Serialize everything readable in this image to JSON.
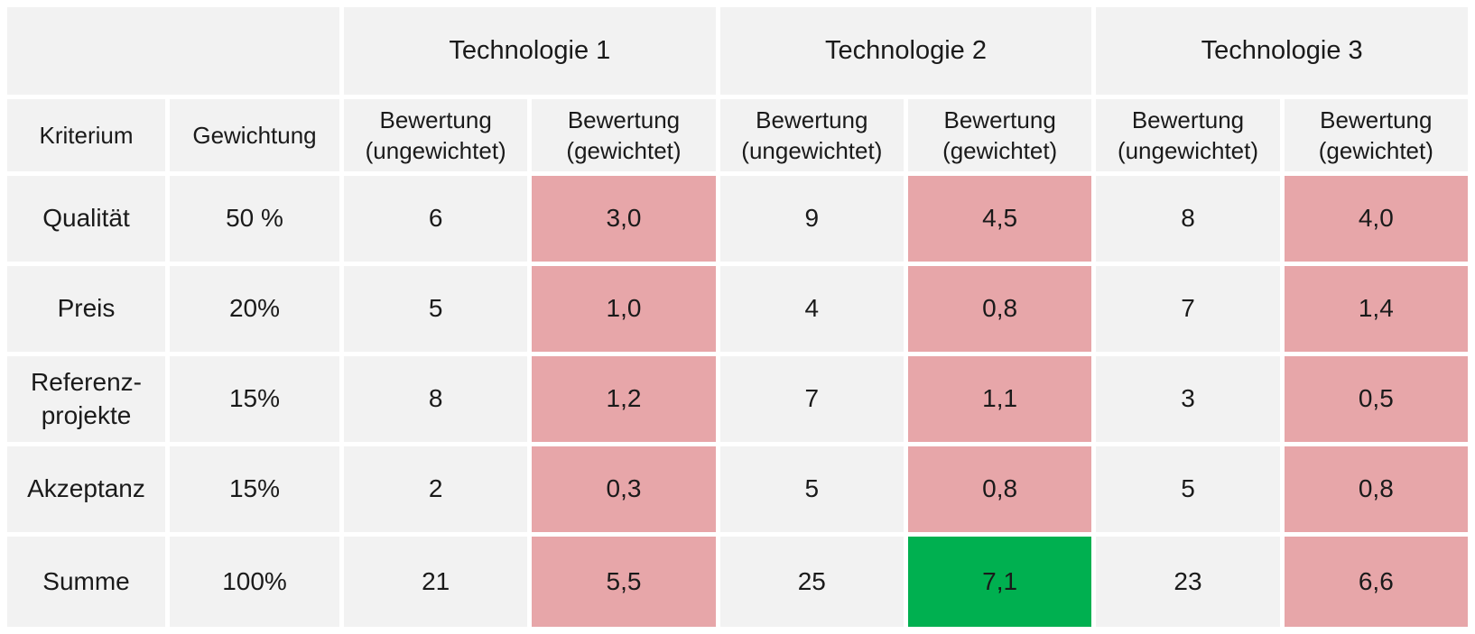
{
  "colors": {
    "page_bg": "#ffffff",
    "cell_bg": "#f2f2f2",
    "text": "#1a1a1a",
    "weighted_pink": "#e7a6a9",
    "winner_green": "#00b050"
  },
  "chart_data": {
    "type": "table",
    "column_groups": [
      "",
      "Technologie 1",
      "Technologie 2",
      "Technologie 3"
    ],
    "columns": [
      "Kriterium",
      "Gewichtung",
      "Bewertung (ungewichtet)",
      "Bewertung (gewichtet)",
      "Bewertung (ungewichtet)",
      "Bewertung (gewichtet)",
      "Bewertung (ungewichtet)",
      "Bewertung (gewichtet)"
    ],
    "rows": [
      [
        "Qualität",
        "50 %",
        "6",
        "3,0",
        "9",
        "4,5",
        "8",
        "4,0"
      ],
      [
        "Preis",
        "20%",
        "5",
        "1,0",
        "4",
        "0,8",
        "7",
        "1,4"
      ],
      [
        "Referenz-projekte",
        "15%",
        "8",
        "1,2",
        "7",
        "1,1",
        "3",
        "0,5"
      ],
      [
        "Akzeptanz",
        "15%",
        "2",
        "0,3",
        "5",
        "0,8",
        "5",
        "0,8"
      ],
      [
        "Summe",
        "100%",
        "21",
        "5,5",
        "25",
        "7,1",
        "23",
        "6,6"
      ]
    ],
    "highlights": {
      "weighted_value_columns_color": "#e7a6a9",
      "winner_cell": {
        "row": "Summe",
        "group": "Technologie 2",
        "column": "Bewertung (gewichtet)",
        "value": "7,1",
        "color": "#00b050"
      }
    },
    "layout_hints": {
      "grid": "white 5px gutters between gray cells",
      "decimal_separator": "comma (German)"
    }
  }
}
